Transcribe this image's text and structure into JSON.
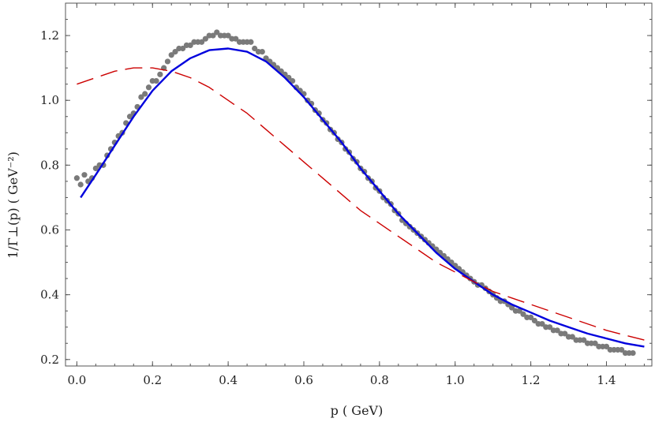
{
  "chart_data": {
    "type": "scatter",
    "xlabel": "p  ( GeV)",
    "ylabel": "1/Γ⊥(p)  ( GeV⁻²)",
    "xlim": [
      -0.03,
      1.52
    ],
    "ylim": [
      0.18,
      1.3
    ],
    "x_ticks": [
      0.0,
      0.2,
      0.4,
      0.6,
      0.8,
      1.0,
      1.2,
      1.4
    ],
    "x_tick_labels": [
      "0.0",
      "0.2",
      "0.4",
      "0.6",
      "0.8",
      "1.0",
      "1.2",
      "1.4"
    ],
    "y_ticks": [
      0.2,
      0.4,
      0.6,
      0.8,
      1.0,
      1.2
    ],
    "y_tick_labels": [
      "0.2",
      "0.4",
      "0.6",
      "0.8",
      "1.0",
      "1.2"
    ],
    "grid": false,
    "legend": "none",
    "series": [
      {
        "kind": "points",
        "color": "#7a7a7a",
        "x": [
          0.0,
          0.01,
          0.02,
          0.03,
          0.04,
          0.05,
          0.06,
          0.07,
          0.08,
          0.09,
          0.1,
          0.11,
          0.12,
          0.13,
          0.14,
          0.15,
          0.16,
          0.17,
          0.18,
          0.19,
          0.2,
          0.21,
          0.22,
          0.23,
          0.24,
          0.25,
          0.26,
          0.27,
          0.28,
          0.29,
          0.3,
          0.31,
          0.32,
          0.33,
          0.34,
          0.35,
          0.36,
          0.37,
          0.38,
          0.39,
          0.4,
          0.41,
          0.42,
          0.43,
          0.44,
          0.45,
          0.46,
          0.47,
          0.48,
          0.49,
          0.5,
          0.51,
          0.52,
          0.53,
          0.54,
          0.55,
          0.56,
          0.57,
          0.58,
          0.59,
          0.6,
          0.61,
          0.62,
          0.63,
          0.64,
          0.65,
          0.66,
          0.67,
          0.68,
          0.69,
          0.7,
          0.71,
          0.72,
          0.73,
          0.74,
          0.75,
          0.76,
          0.77,
          0.78,
          0.79,
          0.8,
          0.81,
          0.82,
          0.83,
          0.84,
          0.85,
          0.86,
          0.87,
          0.88,
          0.89,
          0.9,
          0.91,
          0.92,
          0.93,
          0.94,
          0.95,
          0.96,
          0.97,
          0.98,
          0.99,
          1.0,
          1.01,
          1.02,
          1.03,
          1.04,
          1.05,
          1.06,
          1.07,
          1.08,
          1.09,
          1.1,
          1.11,
          1.12,
          1.13,
          1.14,
          1.15,
          1.16,
          1.17,
          1.18,
          1.19,
          1.2,
          1.21,
          1.22,
          1.23,
          1.24,
          1.25,
          1.26,
          1.27,
          1.28,
          1.29,
          1.3,
          1.31,
          1.32,
          1.33,
          1.34,
          1.35,
          1.36,
          1.37,
          1.38,
          1.39,
          1.4,
          1.41,
          1.42,
          1.43,
          1.44,
          1.45,
          1.46,
          1.47
        ],
        "y": [
          0.76,
          0.74,
          0.77,
          0.75,
          0.76,
          0.79,
          0.8,
          0.8,
          0.83,
          0.85,
          0.87,
          0.89,
          0.9,
          0.93,
          0.95,
          0.96,
          0.98,
          1.01,
          1.02,
          1.04,
          1.06,
          1.06,
          1.08,
          1.1,
          1.12,
          1.14,
          1.15,
          1.16,
          1.16,
          1.17,
          1.17,
          1.18,
          1.18,
          1.18,
          1.19,
          1.2,
          1.2,
          1.21,
          1.2,
          1.2,
          1.2,
          1.19,
          1.19,
          1.18,
          1.18,
          1.18,
          1.18,
          1.16,
          1.15,
          1.15,
          1.13,
          1.12,
          1.11,
          1.1,
          1.09,
          1.08,
          1.07,
          1.06,
          1.04,
          1.03,
          1.02,
          1.0,
          0.99,
          0.97,
          0.96,
          0.94,
          0.93,
          0.91,
          0.9,
          0.88,
          0.87,
          0.85,
          0.84,
          0.82,
          0.81,
          0.79,
          0.78,
          0.76,
          0.75,
          0.73,
          0.72,
          0.7,
          0.69,
          0.68,
          0.66,
          0.65,
          0.63,
          0.62,
          0.61,
          0.6,
          0.59,
          0.58,
          0.57,
          0.56,
          0.55,
          0.54,
          0.53,
          0.52,
          0.51,
          0.5,
          0.49,
          0.48,
          0.47,
          0.46,
          0.45,
          0.44,
          0.43,
          0.43,
          0.42,
          0.41,
          0.4,
          0.39,
          0.38,
          0.38,
          0.37,
          0.36,
          0.35,
          0.35,
          0.34,
          0.33,
          0.33,
          0.32,
          0.31,
          0.31,
          0.3,
          0.3,
          0.29,
          0.29,
          0.28,
          0.28,
          0.27,
          0.27,
          0.26,
          0.26,
          0.26,
          0.25,
          0.25,
          0.25,
          0.24,
          0.24,
          0.24,
          0.23,
          0.23,
          0.23,
          0.23,
          0.22,
          0.22,
          0.22
        ]
      },
      {
        "kind": "line",
        "style": "solid",
        "color": "#0000dd",
        "x": [
          0.01,
          0.05,
          0.1,
          0.15,
          0.2,
          0.25,
          0.3,
          0.35,
          0.4,
          0.45,
          0.5,
          0.55,
          0.6,
          0.65,
          0.7,
          0.75,
          0.8,
          0.85,
          0.9,
          0.95,
          1.0,
          1.05,
          1.1,
          1.15,
          1.2,
          1.25,
          1.3,
          1.35,
          1.4,
          1.45,
          1.5
        ],
        "y": [
          0.7,
          0.77,
          0.86,
          0.95,
          1.03,
          1.09,
          1.13,
          1.155,
          1.16,
          1.15,
          1.12,
          1.07,
          1.01,
          0.94,
          0.87,
          0.79,
          0.72,
          0.65,
          0.59,
          0.53,
          0.48,
          0.44,
          0.4,
          0.37,
          0.345,
          0.32,
          0.3,
          0.28,
          0.265,
          0.25,
          0.24
        ]
      },
      {
        "kind": "line",
        "style": "dashed",
        "color": "#cc0000",
        "x": [
          0.0,
          0.05,
          0.1,
          0.15,
          0.2,
          0.25,
          0.3,
          0.35,
          0.4,
          0.45,
          0.5,
          0.55,
          0.6,
          0.65,
          0.7,
          0.75,
          0.8,
          0.85,
          0.9,
          0.95,
          1.0,
          1.05,
          1.1,
          1.15,
          1.2,
          1.25,
          1.3,
          1.35,
          1.4,
          1.45,
          1.5
        ],
        "y": [
          1.05,
          1.07,
          1.09,
          1.1,
          1.1,
          1.09,
          1.07,
          1.04,
          1.0,
          0.96,
          0.91,
          0.86,
          0.81,
          0.76,
          0.71,
          0.66,
          0.62,
          0.58,
          0.54,
          0.5,
          0.47,
          0.44,
          0.41,
          0.39,
          0.37,
          0.35,
          0.33,
          0.31,
          0.29,
          0.275,
          0.26
        ]
      }
    ]
  }
}
